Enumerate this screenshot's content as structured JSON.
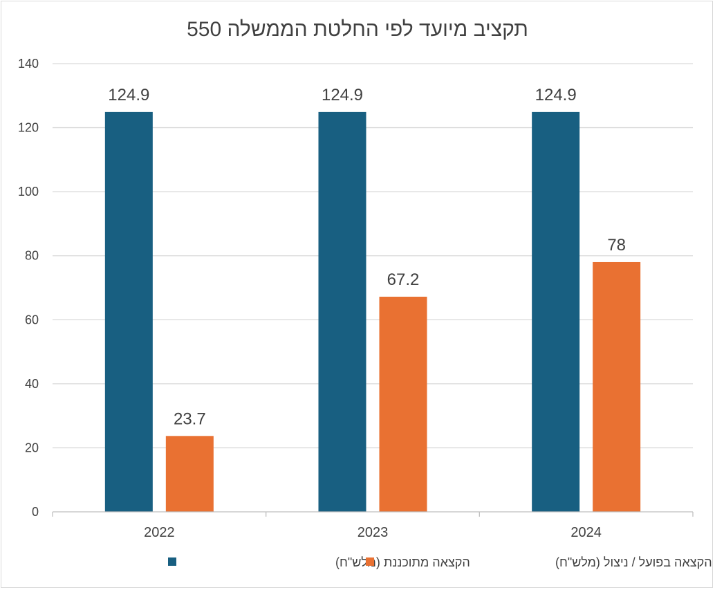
{
  "chart_data": {
    "type": "bar",
    "title": "תקציב מיועד לפי החלטת הממשלה 550",
    "categories": [
      "2022",
      "2023",
      "2024"
    ],
    "series": [
      {
        "name": "הקצאה מתוכננת  (מלש\"ח)",
        "values": [
          124.9,
          124.9,
          124.9
        ],
        "color": "#185f81"
      },
      {
        "name": "הקצאה בפועל / ניצול (מלש\"ח)",
        "values": [
          23.7,
          67.2,
          78
        ],
        "color": "#e97132"
      }
    ],
    "data_labels": [
      [
        "124.9",
        "124.9",
        "124.9"
      ],
      [
        "23.7",
        "67.2",
        "78"
      ]
    ],
    "ylim": [
      0,
      140
    ],
    "yticks": [
      "0",
      "20",
      "40",
      "60",
      "80",
      "100",
      "120",
      "140"
    ],
    "grid": true,
    "legend": "bottom"
  }
}
